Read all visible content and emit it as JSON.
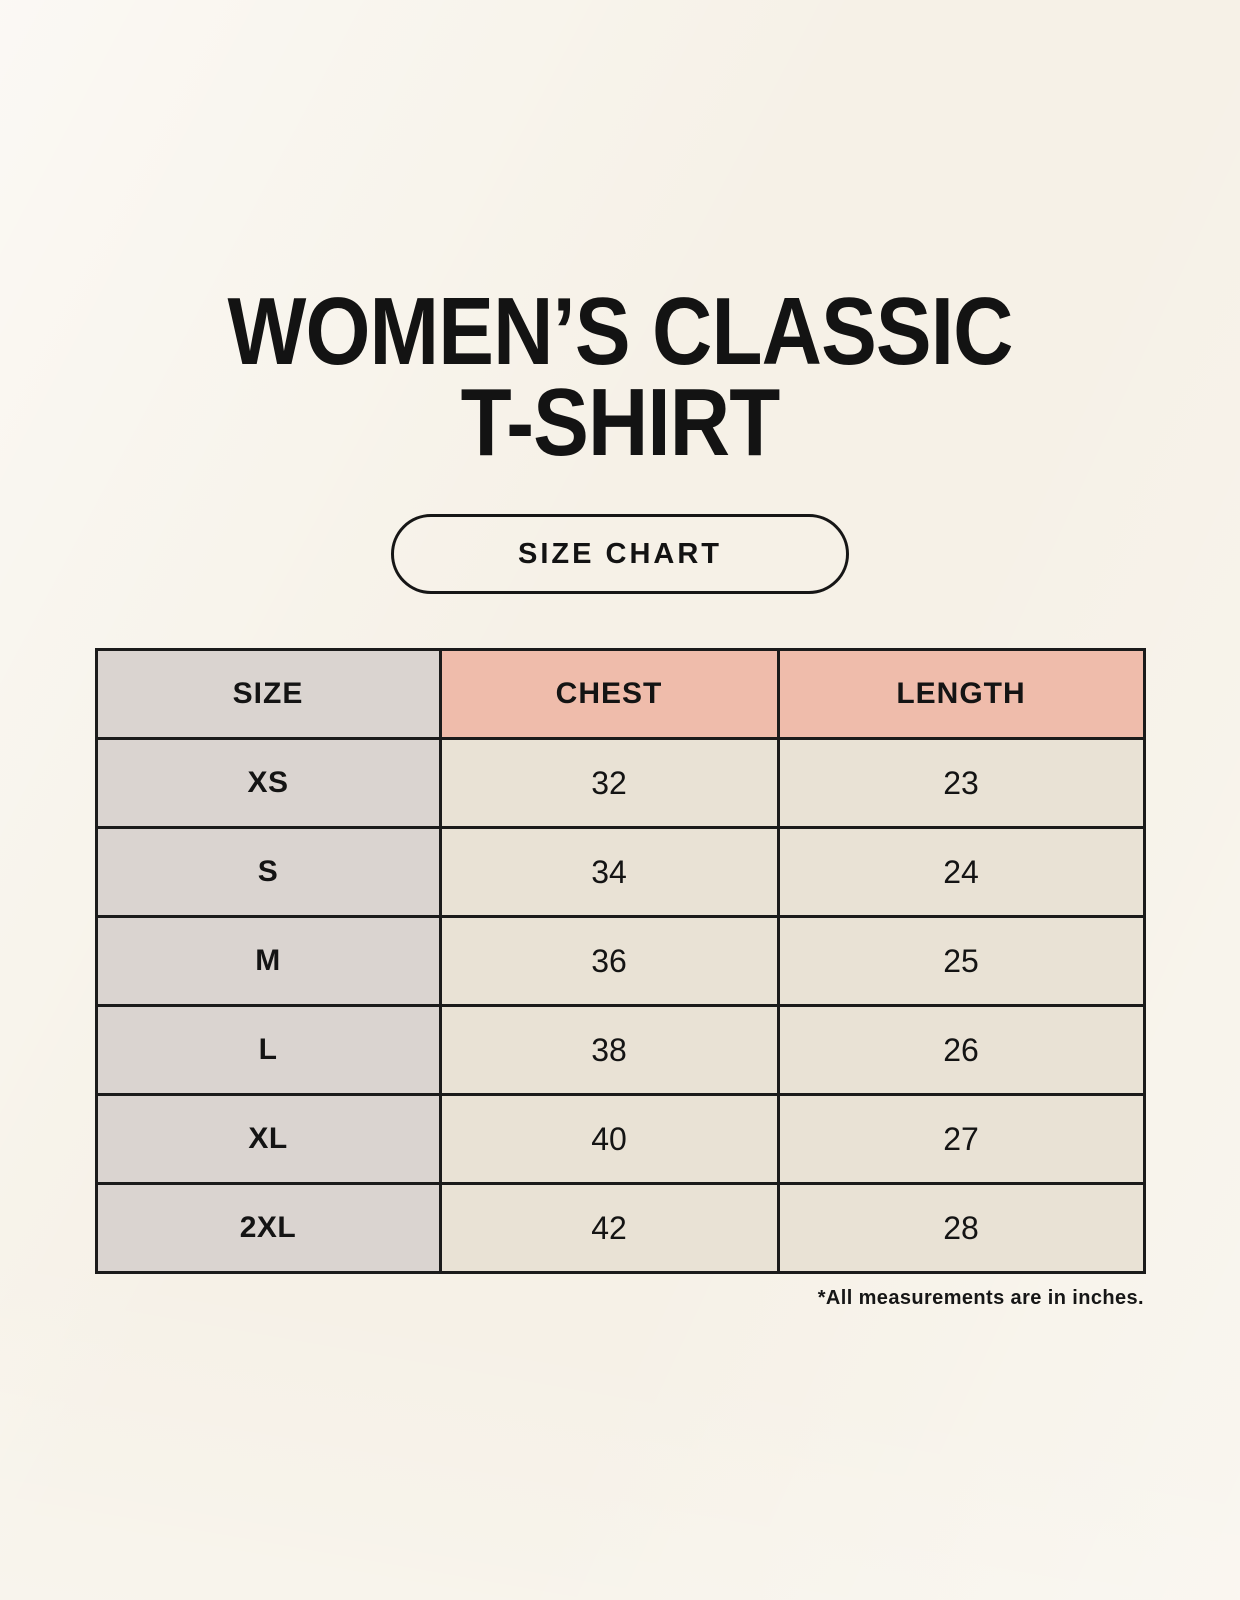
{
  "header": {
    "title_line1": "WOMEN’S CLASSIC",
    "title_line2": "T-SHIRT",
    "badge_label": "SIZE CHART"
  },
  "footnote": "*All measurements are in inches.",
  "colors": {
    "background": "#f6f1e7",
    "size_column": "#dad4d0",
    "measure_header": "#efbcab",
    "data_cell": "#e9e2d5",
    "border": "#1b1b1b",
    "text": "#141414"
  },
  "chart_data": {
    "type": "table",
    "title": "WOMEN’S CLASSIC T-SHIRT",
    "columns": [
      "SIZE",
      "CHEST",
      "LENGTH"
    ],
    "rows": [
      {
        "size": "XS",
        "chest": "32",
        "length": "23"
      },
      {
        "size": "S",
        "chest": "34",
        "length": "24"
      },
      {
        "size": "M",
        "chest": "36",
        "length": "25"
      },
      {
        "size": "L",
        "chest": "38",
        "length": "26"
      },
      {
        "size": "XL",
        "chest": "40",
        "length": "27"
      },
      {
        "size": "2XL",
        "chest": "42",
        "length": "28"
      }
    ],
    "units_note": "*All measurements are in inches."
  }
}
